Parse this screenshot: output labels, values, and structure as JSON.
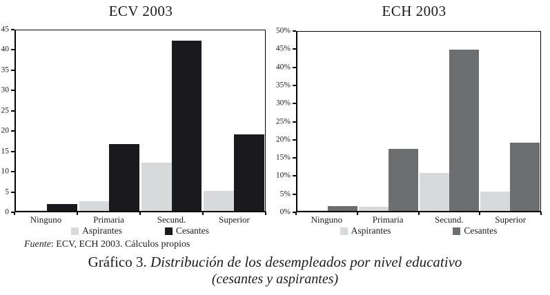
{
  "chart_data": [
    {
      "type": "bar",
      "title": "ECV 2003",
      "categories": [
        "Ninguno",
        "Primaria",
        "Secund.",
        "Superior"
      ],
      "series": [
        {
          "name": "Aspirantes",
          "color": "#d8d9da",
          "values": [
            0.2,
            2.4,
            12.1,
            5.0
          ]
        },
        {
          "name": "Cesantes",
          "color": "#1a1a1e",
          "values": [
            1.8,
            16.6,
            42.5,
            19.0
          ]
        }
      ],
      "ylim": [
        0,
        45
      ],
      "ytick_step": 5,
      "ytick_suffix": "",
      "grid": false,
      "legend_position": "bottom"
    },
    {
      "type": "bar",
      "title": "ECH 2003",
      "categories": [
        "Ninguno",
        "Primaria",
        "Secund.",
        "Superior"
      ],
      "series": [
        {
          "name": "Aspirantes",
          "color": "#d8d9da",
          "values": [
            0.1,
            1.2,
            10.5,
            5.3
          ]
        },
        {
          "name": "Cesantes",
          "color": "#6d6e70",
          "values": [
            1.4,
            17.3,
            45.0,
            19.0
          ]
        }
      ],
      "ylim": [
        0,
        50
      ],
      "ytick_step": 5,
      "ytick_suffix": "%",
      "grid": false,
      "legend_position": "bottom"
    }
  ],
  "source_note": {
    "label_italic": "Fuente",
    "rest": ": ECV, ECH 2003. Cálculos propios"
  },
  "caption": {
    "prefix": "Gráfico 3.",
    "title_italic": "Distribución de los desempleados por nivel educativo",
    "subtitle_italic": "(cesantes y aspirantes)"
  }
}
